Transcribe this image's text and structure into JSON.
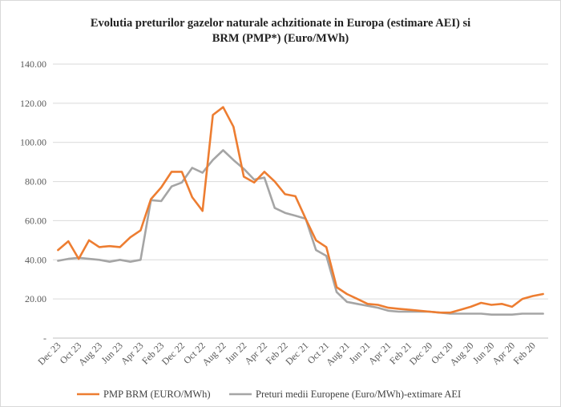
{
  "chart_data": {
    "type": "line",
    "title_line1": "Evolutia preturilor gazelor naturale achzitionate in Europa (estimare AEI) si",
    "title_line2": "BRM (PMP*) (Euro/MWh)",
    "ylim": [
      0,
      140
    ],
    "yticks": [
      "-",
      "20.00",
      "40.00",
      "60.00",
      "80.00",
      "100.00",
      "120.00",
      "140.00"
    ],
    "grid": true,
    "legend_position": "bottom",
    "x": [
      "Dec 23",
      "Nov 23",
      "Oct 23",
      "Sep 23",
      "Aug 23",
      "Jul 23",
      "Jun 23",
      "May 23",
      "Apr 23",
      "Mar 23",
      "Feb 23",
      "Jan 23",
      "Dec 22",
      "Nov 22",
      "Oct 22",
      "Sep 22",
      "Aug 22",
      "Jul 22",
      "Jun 22",
      "May 22",
      "Apr 22",
      "Mar 22",
      "Feb 22",
      "Jan 22",
      "Dec 21",
      "Nov 21",
      "Oct 21",
      "Sep 21",
      "Aug 21",
      "Jul 21",
      "Jun 21",
      "May 21",
      "Apr 21",
      "Mar 21",
      "Feb 21",
      "Jan 21",
      "Dec 20",
      "Nov 20",
      "Oct 20",
      "Sep 20",
      "Aug 20",
      "Jul 20",
      "Jun 20",
      "May 20",
      "Apr 20",
      "Mar 20",
      "Feb 20",
      "Jan 20"
    ],
    "x_tick_labels": [
      "Dec 23",
      "Oct 23",
      "Aug 23",
      "Jun 23",
      "Apr 23",
      "Feb 23",
      "Dec 22",
      "Oct 22",
      "Aug 22",
      "Jun 22",
      "Apr 22",
      "Feb 22",
      "Dec 21",
      "Oct 21",
      "Aug 21",
      "Jun 21",
      "Apr 21",
      "Feb 21",
      "Dec 20",
      "Oct 20",
      "Aug 20",
      "Jun 20",
      "Apr 20",
      "Feb 20"
    ],
    "series": [
      {
        "name": "PMP BRM (EURO/MWh)",
        "color": "#ed7d31",
        "values": [
          45.0,
          49.5,
          40.5,
          50.0,
          46.5,
          47.0,
          46.5,
          51.5,
          55.0,
          71.0,
          77.0,
          85.0,
          85.0,
          72.0,
          65.0,
          114.0,
          118.0,
          108.0,
          82.5,
          79.5,
          85.0,
          80.0,
          73.5,
          72.5,
          61.0,
          50.0,
          46.5,
          26.0,
          22.5,
          20.0,
          17.5,
          17.0,
          15.5,
          15.0,
          14.5,
          14.0,
          13.5,
          13.0,
          13.0,
          14.5,
          16.0,
          18.0,
          17.0,
          17.5,
          16.0,
          20.0,
          21.5,
          22.5
        ]
      },
      {
        "name": "Preturi medii Europene (Euro/MWh)-extimare AEI",
        "color": "#a5a5a5",
        "values": [
          39.5,
          40.5,
          41.0,
          40.5,
          40.0,
          39.0,
          40.0,
          39.0,
          40.0,
          70.5,
          70.0,
          77.5,
          79.5,
          87.0,
          84.5,
          91.0,
          96.0,
          91.0,
          86.5,
          81.0,
          82.0,
          66.5,
          64.0,
          62.5,
          61.0,
          45.0,
          42.0,
          23.5,
          18.5,
          17.5,
          16.5,
          15.5,
          14.0,
          13.5,
          13.5,
          13.5,
          13.5,
          13.0,
          12.5,
          12.5,
          12.5,
          12.5,
          12.0,
          12.0,
          12.0,
          12.5,
          12.5,
          12.5
        ]
      }
    ]
  }
}
